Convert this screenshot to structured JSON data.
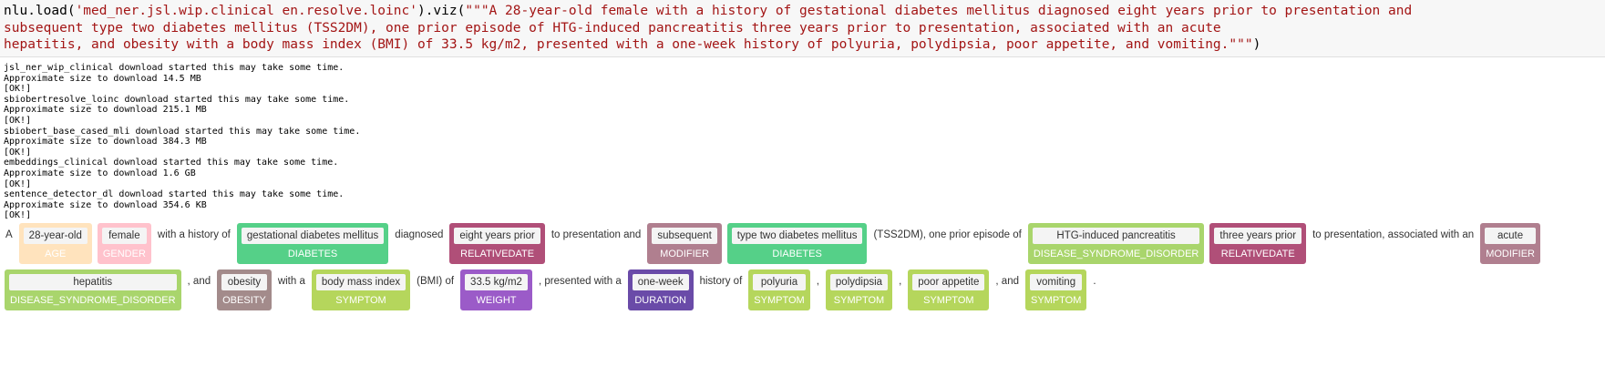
{
  "code": {
    "lines": [
      [
        {
          "text": "nlu.load(",
          "color": "#000000"
        },
        {
          "text": "'med_ner.jsl.wip.clinical en.resolve.loinc'",
          "color": "#a31515"
        },
        {
          "text": ").viz(",
          "color": "#000000"
        },
        {
          "text": "\"\"\"A 28-year-old female with a history of gestational diabetes mellitus diagnosed eight years prior to presentation and",
          "color": "#a31515"
        }
      ],
      [
        {
          "text": "subsequent type two diabetes mellitus (TSS2DM), one prior episode of HTG-induced pancreatitis three years prior to presentation, associated with an acute",
          "color": "#a31515"
        }
      ],
      [
        {
          "text": "hepatitis, and obesity with a body mass index (BMI) of 33.5 kg/m2, presented with a one-week history of polyuria, polydipsia, poor appetite, and vomiting.\"\"\"",
          "color": "#a31515"
        },
        {
          "text": ")",
          "color": "#000000"
        }
      ]
    ]
  },
  "output": [
    "jsl_ner_wip_clinical download started this may take some time.",
    "Approximate size to download 14.5 MB",
    "[OK!]",
    "sbiobertresolve_loinc download started this may take some time.",
    "Approximate size to download 215.1 MB",
    "[OK!]",
    "sbiobert_base_cased_mli download started this may take some time.",
    "Approximate size to download 384.3 MB",
    "[OK!]",
    "embeddings_clinical download started this may take some time.",
    "Approximate size to download 1.6 GB",
    "[OK!]",
    "sentence_detector_dl download started this may take some time.",
    "Approximate size to download 354.6 KB",
    "[OK!]"
  ],
  "ner": [
    "A",
    {
      "text": "28-year-old",
      "label": "AGE",
      "color": "#ffe3bd"
    },
    {
      "text": "female",
      "label": "GENDER",
      "color": "#ffc2cc"
    },
    "with a history of",
    {
      "text": "gestational diabetes mellitus",
      "label": "DIABETES",
      "color": "#55d088"
    },
    "diagnosed",
    {
      "text": "eight years prior",
      "label": "RELATIVEDATE",
      "color": "#b04f78"
    },
    "to presentation and",
    {
      "text": "subsequent",
      "label": "MODIFIER",
      "color": "#b07f8f"
    },
    {
      "text": "type two diabetes mellitus",
      "label": "DIABETES",
      "color": "#55d088"
    },
    "(TSS2DM), one prior episode of",
    {
      "text": "HTG-induced pancreatitis",
      "label": "DISEASE_SYNDROME_DISORDER",
      "color": "#a9d56c"
    },
    {
      "text": "three years prior",
      "label": "RELATIVEDATE",
      "color": "#b04f78"
    },
    "to presentation, associated with an",
    {
      "text": "acute",
      "label": "MODIFIER",
      "color": "#b07f8f"
    },
    {
      "text": "hepatitis",
      "label": "DISEASE_SYNDROME_DISORDER",
      "color": "#a9d56c"
    },
    ", and",
    {
      "text": "obesity",
      "label": "OBESITY",
      "color": "#a38b8b"
    },
    "with a",
    {
      "text": "body mass index",
      "label": "SYMPTOM",
      "color": "#b5d65c"
    },
    "(BMI) of",
    {
      "text": "33.5 kg/m2",
      "label": "WEIGHT",
      "color": "#9b5bc8"
    },
    ", presented with a",
    {
      "text": "one-week",
      "label": "DURATION",
      "color": "#6a4ba8"
    },
    "history of",
    {
      "text": "polyuria",
      "label": "SYMPTOM",
      "color": "#b5d65c"
    },
    ",",
    {
      "text": "polydipsia",
      "label": "SYMPTOM",
      "color": "#b5d65c"
    },
    ",",
    {
      "text": "poor appetite",
      "label": "SYMPTOM",
      "color": "#b5d65c"
    },
    ", and",
    {
      "text": "vomiting",
      "label": "SYMPTOM",
      "color": "#b5d65c"
    },
    "."
  ]
}
